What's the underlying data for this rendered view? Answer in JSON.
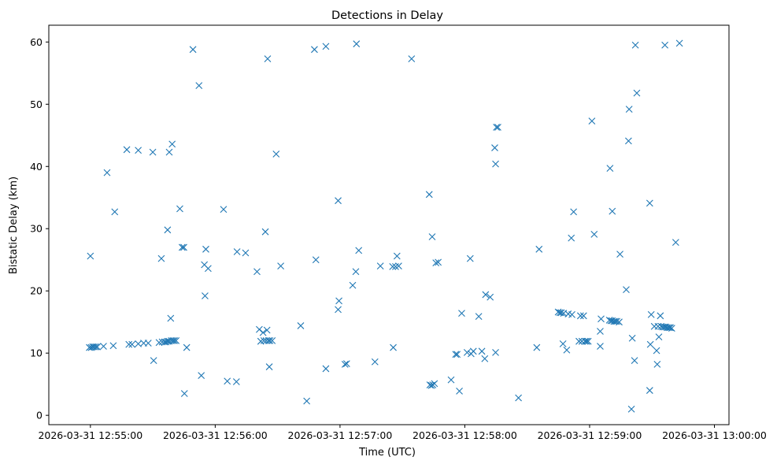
{
  "chart_data": {
    "type": "scatter",
    "title": "Detections in Delay",
    "xlabel": "Time (UTC)",
    "ylabel": "Bistatic Delay (km)",
    "x_unit": "time",
    "xlim": [
      "2026-03-31 12:54:40",
      "2026-03-31 13:00:07"
    ],
    "ylim": [
      -1.5,
      62.7
    ],
    "xticks": [
      {
        "label": "2026-03-31 12:55:00",
        "value": "2026-03-31 12:55:00"
      },
      {
        "label": "2026-03-31 12:56:00",
        "value": "2026-03-31 12:56:00"
      },
      {
        "label": "2026-03-31 12:57:00",
        "value": "2026-03-31 12:57:00"
      },
      {
        "label": "2026-03-31 12:58:00",
        "value": "2026-03-31 12:58:00"
      },
      {
        "label": "2026-03-31 12:59:00",
        "value": "2026-03-31 12:59:00"
      },
      {
        "label": "2026-03-31 13:00:00",
        "value": "2026-03-31 13:00:00"
      }
    ],
    "yticks": [
      0,
      10,
      20,
      30,
      40,
      50,
      60
    ],
    "grid": false,
    "marker": "x",
    "color": "#1f77b4",
    "points": [
      {
        "t": "2026-03-31 12:55:00.0",
        "y": 25.6
      },
      {
        "t": "2026-03-31 12:54:59.5",
        "y": 10.9
      },
      {
        "t": "2026-03-31 12:55:00.4",
        "y": 10.9
      },
      {
        "t": "2026-03-31 12:55:01.1",
        "y": 11.0
      },
      {
        "t": "2026-03-31 12:55:01.8",
        "y": 11.0
      },
      {
        "t": "2026-03-31 12:55:02.6",
        "y": 11.0
      },
      {
        "t": "2026-03-31 12:55:03.3",
        "y": 11.0
      },
      {
        "t": "2026-03-31 12:55:06.3",
        "y": 11.1
      },
      {
        "t": "2026-03-31 12:55:11.0",
        "y": 11.2
      },
      {
        "t": "2026-03-31 12:55:08.0",
        "y": 39.0
      },
      {
        "t": "2026-03-31 12:55:11.7",
        "y": 32.7
      },
      {
        "t": "2026-03-31 12:55:17.5",
        "y": 42.7
      },
      {
        "t": "2026-03-31 12:55:23.0",
        "y": 42.6
      },
      {
        "t": "2026-03-31 12:55:30.0",
        "y": 42.3
      },
      {
        "t": "2026-03-31 12:55:37.9",
        "y": 42.3
      },
      {
        "t": "2026-03-31 12:55:39.3",
        "y": 43.6
      },
      {
        "t": "2026-03-31 12:55:18.5",
        "y": 11.4
      },
      {
        "t": "2026-03-31 12:55:20.0",
        "y": 11.4
      },
      {
        "t": "2026-03-31 12:55:23.0",
        "y": 11.5
      },
      {
        "t": "2026-03-31 12:55:25.6",
        "y": 11.6
      },
      {
        "t": "2026-03-31 12:55:27.8",
        "y": 11.6
      },
      {
        "t": "2026-03-31 12:55:33.0",
        "y": 11.7
      },
      {
        "t": "2026-03-31 12:55:34.5",
        "y": 11.8
      },
      {
        "t": "2026-03-31 12:55:35.6",
        "y": 11.8
      },
      {
        "t": "2026-03-31 12:55:36.3",
        "y": 11.8
      },
      {
        "t": "2026-03-31 12:55:37.1",
        "y": 11.9
      },
      {
        "t": "2026-03-31 12:55:37.8",
        "y": 11.9
      },
      {
        "t": "2026-03-31 12:55:38.9",
        "y": 12.0
      },
      {
        "t": "2026-03-31 12:55:39.7",
        "y": 12.0
      },
      {
        "t": "2026-03-31 12:55:40.4",
        "y": 12.0
      },
      {
        "t": "2026-03-31 12:55:41.2",
        "y": 12.0
      },
      {
        "t": "2026-03-31 12:55:30.4",
        "y": 8.8
      },
      {
        "t": "2026-03-31 12:55:34.1",
        "y": 25.2
      },
      {
        "t": "2026-03-31 12:55:37.1",
        "y": 29.8
      },
      {
        "t": "2026-03-31 12:55:38.6",
        "y": 15.6
      },
      {
        "t": "2026-03-31 12:55:43.0",
        "y": 33.2
      },
      {
        "t": "2026-03-31 12:55:44.1",
        "y": 27.0
      },
      {
        "t": "2026-03-31 12:55:44.9",
        "y": 27.0
      },
      {
        "t": "2026-03-31 12:55:45.2",
        "y": 3.5
      },
      {
        "t": "2026-03-31 12:55:46.3",
        "y": 10.9
      },
      {
        "t": "2026-03-31 12:55:49.3",
        "y": 58.8
      },
      {
        "t": "2026-03-31 12:55:52.2",
        "y": 53.0
      },
      {
        "t": "2026-03-31 12:55:53.3",
        "y": 6.4
      },
      {
        "t": "2026-03-31 12:55:54.8",
        "y": 24.2
      },
      {
        "t": "2026-03-31 12:55:55.1",
        "y": 19.2
      },
      {
        "t": "2026-03-31 12:55:55.5",
        "y": 26.7
      },
      {
        "t": "2026-03-31 12:55:56.6",
        "y": 23.6
      },
      {
        "t": "2026-03-31 12:56:04.0",
        "y": 33.1
      },
      {
        "t": "2026-03-31 12:56:05.8",
        "y": 5.5
      },
      {
        "t": "2026-03-31 12:56:10.2",
        "y": 5.4
      },
      {
        "t": "2026-03-31 12:56:10.5",
        "y": 26.3
      },
      {
        "t": "2026-03-31 12:56:14.6",
        "y": 26.1
      },
      {
        "t": "2026-03-31 12:56:20.1",
        "y": 23.1
      },
      {
        "t": "2026-03-31 12:56:21.2",
        "y": 13.8
      },
      {
        "t": "2026-03-31 12:56:21.9",
        "y": 11.9
      },
      {
        "t": "2026-03-31 12:56:23.0",
        "y": 13.3
      },
      {
        "t": "2026-03-31 12:56:23.4",
        "y": 12.0
      },
      {
        "t": "2026-03-31 12:56:24.1",
        "y": 29.5
      },
      {
        "t": "2026-03-31 12:56:24.5",
        "y": 12.0
      },
      {
        "t": "2026-03-31 12:56:24.9",
        "y": 13.7
      },
      {
        "t": "2026-03-31 12:56:25.2",
        "y": 57.3
      },
      {
        "t": "2026-03-31 12:56:25.6",
        "y": 12.0
      },
      {
        "t": "2026-03-31 12:56:26.0",
        "y": 7.8
      },
      {
        "t": "2026-03-31 12:56:26.3",
        "y": 12.0
      },
      {
        "t": "2026-03-31 12:56:27.4",
        "y": 12.0
      },
      {
        "t": "2026-03-31 12:56:29.3",
        "y": 42.0
      },
      {
        "t": "2026-03-31 12:56:31.5",
        "y": 24.0
      },
      {
        "t": "2026-03-31 12:56:41.1",
        "y": 14.4
      },
      {
        "t": "2026-03-31 12:56:44.0",
        "y": 2.3
      },
      {
        "t": "2026-03-31 12:56:47.7",
        "y": 58.8
      },
      {
        "t": "2026-03-31 12:56:48.4",
        "y": 25.0
      },
      {
        "t": "2026-03-31 12:56:53.2",
        "y": 59.3
      },
      {
        "t": "2026-03-31 12:56:53.2",
        "y": 7.5
      },
      {
        "t": "2026-03-31 12:56:59.1",
        "y": 17.0
      },
      {
        "t": "2026-03-31 12:56:59.1",
        "y": 34.5
      },
      {
        "t": "2026-03-31 12:56:59.5",
        "y": 18.4
      },
      {
        "t": "2026-03-31 12:57:02.4",
        "y": 8.2
      },
      {
        "t": "2026-03-31 12:57:03.2",
        "y": 8.3
      },
      {
        "t": "2026-03-31 12:57:06.1",
        "y": 20.9
      },
      {
        "t": "2026-03-31 12:57:07.6",
        "y": 23.1
      },
      {
        "t": "2026-03-31 12:57:07.9",
        "y": 59.7
      },
      {
        "t": "2026-03-31 12:57:09.0",
        "y": 26.5
      },
      {
        "t": "2026-03-31 12:57:16.8",
        "y": 8.6
      },
      {
        "t": "2026-03-31 12:57:19.4",
        "y": 24.0
      },
      {
        "t": "2026-03-31 12:57:25.3",
        "y": 23.9
      },
      {
        "t": "2026-03-31 12:57:25.6",
        "y": 10.9
      },
      {
        "t": "2026-03-31 12:57:26.7",
        "y": 23.9
      },
      {
        "t": "2026-03-31 12:57:27.4",
        "y": 25.6
      },
      {
        "t": "2026-03-31 12:57:28.2",
        "y": 24.0
      },
      {
        "t": "2026-03-31 12:57:34.4",
        "y": 57.3
      },
      {
        "t": "2026-03-31 12:57:42.9",
        "y": 35.5
      },
      {
        "t": "2026-03-31 12:57:43.2",
        "y": 4.9
      },
      {
        "t": "2026-03-31 12:57:43.9",
        "y": 4.8
      },
      {
        "t": "2026-03-31 12:57:44.3",
        "y": 28.7
      },
      {
        "t": "2026-03-31 12:57:44.6",
        "y": 4.9
      },
      {
        "t": "2026-03-31 12:57:45.4",
        "y": 5.1
      },
      {
        "t": "2026-03-31 12:57:46.1",
        "y": 24.5
      },
      {
        "t": "2026-03-31 12:57:47.2",
        "y": 24.6
      },
      {
        "t": "2026-03-31 12:57:53.4",
        "y": 5.7
      },
      {
        "t": "2026-03-31 12:57:55.6",
        "y": 9.8
      },
      {
        "t": "2026-03-31 12:57:56.3",
        "y": 9.8
      },
      {
        "t": "2026-03-31 12:57:57.4",
        "y": 3.9
      },
      {
        "t": "2026-03-31 12:57:58.5",
        "y": 16.4
      },
      {
        "t": "2026-03-31 12:58:01.1",
        "y": 10.1
      },
      {
        "t": "2026-03-31 12:58:02.6",
        "y": 25.2
      },
      {
        "t": "2026-03-31 12:58:03.0",
        "y": 9.9
      },
      {
        "t": "2026-03-31 12:58:04.1",
        "y": 10.3
      },
      {
        "t": "2026-03-31 12:58:06.7",
        "y": 15.9
      },
      {
        "t": "2026-03-31 12:58:08.2",
        "y": 10.3
      },
      {
        "t": "2026-03-31 12:58:09.6",
        "y": 9.1
      },
      {
        "t": "2026-03-31 12:58:10.0",
        "y": 19.4
      },
      {
        "t": "2026-03-31 12:58:12.2",
        "y": 19.0
      },
      {
        "t": "2026-03-31 12:58:14.4",
        "y": 43.0
      },
      {
        "t": "2026-03-31 12:58:14.8",
        "y": 40.4
      },
      {
        "t": "2026-03-31 12:58:14.8",
        "y": 10.1
      },
      {
        "t": "2026-03-31 12:58:15.2",
        "y": 46.3
      },
      {
        "t": "2026-03-31 12:58:15.9",
        "y": 46.3
      },
      {
        "t": "2026-03-31 12:58:25.8",
        "y": 2.8
      },
      {
        "t": "2026-03-31 12:58:34.6",
        "y": 10.9
      },
      {
        "t": "2026-03-31 12:58:35.7",
        "y": 26.7
      },
      {
        "t": "2026-03-31 12:58:44.9",
        "y": 16.6
      },
      {
        "t": "2026-03-31 12:58:45.7",
        "y": 16.5
      },
      {
        "t": "2026-03-31 12:58:46.4",
        "y": 16.5
      },
      {
        "t": "2026-03-31 12:58:47.5",
        "y": 16.4
      },
      {
        "t": "2026-03-31 12:58:49.7",
        "y": 16.3
      },
      {
        "t": "2026-03-31 12:58:51.5",
        "y": 16.2
      },
      {
        "t": "2026-03-31 12:58:47.2",
        "y": 11.5
      },
      {
        "t": "2026-03-31 12:58:49.0",
        "y": 10.5
      },
      {
        "t": "2026-03-31 12:58:51.2",
        "y": 28.5
      },
      {
        "t": "2026-03-31 12:58:52.3",
        "y": 32.7
      },
      {
        "t": "2026-03-31 12:58:54.9",
        "y": 11.9
      },
      {
        "t": "2026-03-31 12:58:55.6",
        "y": 16.0
      },
      {
        "t": "2026-03-31 12:58:56.3",
        "y": 11.9
      },
      {
        "t": "2026-03-31 12:58:57.1",
        "y": 16.0
      },
      {
        "t": "2026-03-31 12:58:57.8",
        "y": 11.9
      },
      {
        "t": "2026-03-31 12:58:58.5",
        "y": 11.9
      },
      {
        "t": "2026-03-31 12:58:59.3",
        "y": 11.9
      },
      {
        "t": "2026-03-31 12:59:01.1",
        "y": 47.3
      },
      {
        "t": "2026-03-31 12:59:02.2",
        "y": 29.1
      },
      {
        "t": "2026-03-31 12:59:05.1",
        "y": 11.1
      },
      {
        "t": "2026-03-31 12:59:05.1",
        "y": 13.5
      },
      {
        "t": "2026-03-31 12:59:05.5",
        "y": 15.5
      },
      {
        "t": "2026-03-31 12:59:09.5",
        "y": 15.3
      },
      {
        "t": "2026-03-31 12:59:10.2",
        "y": 15.2
      },
      {
        "t": "2026-03-31 12:59:10.9",
        "y": 15.2
      },
      {
        "t": "2026-03-31 12:59:11.7",
        "y": 15.1
      },
      {
        "t": "2026-03-31 12:59:12.4",
        "y": 15.1
      },
      {
        "t": "2026-03-31 12:59:13.1",
        "y": 15.1
      },
      {
        "t": "2026-03-31 12:59:14.2",
        "y": 15.0
      },
      {
        "t": "2026-03-31 12:59:10.9",
        "y": 32.8
      },
      {
        "t": "2026-03-31 12:59:09.8",
        "y": 39.7
      },
      {
        "t": "2026-03-31 12:59:14.6",
        "y": 25.9
      },
      {
        "t": "2026-03-31 12:59:17.6",
        "y": 20.2
      },
      {
        "t": "2026-03-31 12:59:18.7",
        "y": 44.1
      },
      {
        "t": "2026-03-31 12:59:19.0",
        "y": 49.2
      },
      {
        "t": "2026-03-31 12:59:20.1",
        "y": 1.0
      },
      {
        "t": "2026-03-31 12:59:20.5",
        "y": 12.4
      },
      {
        "t": "2026-03-31 12:59:21.6",
        "y": 8.8
      },
      {
        "t": "2026-03-31 12:59:22.0",
        "y": 59.5
      },
      {
        "t": "2026-03-31 12:59:22.7",
        "y": 51.8
      },
      {
        "t": "2026-03-31 12:59:28.9",
        "y": 34.1
      },
      {
        "t": "2026-03-31 12:59:28.9",
        "y": 4.0
      },
      {
        "t": "2026-03-31 12:59:29.2",
        "y": 11.4
      },
      {
        "t": "2026-03-31 12:59:29.6",
        "y": 16.2
      },
      {
        "t": "2026-03-31 12:59:31.1",
        "y": 14.3
      },
      {
        "t": "2026-03-31 12:59:32.2",
        "y": 10.4
      },
      {
        "t": "2026-03-31 12:59:32.5",
        "y": 8.2
      },
      {
        "t": "2026-03-31 12:59:32.9",
        "y": 14.3
      },
      {
        "t": "2026-03-31 12:59:33.3",
        "y": 12.6
      },
      {
        "t": "2026-03-31 12:59:34.0",
        "y": 16.0
      },
      {
        "t": "2026-03-31 12:59:34.4",
        "y": 14.3
      },
      {
        "t": "2026-03-31 12:59:35.1",
        "y": 14.2
      },
      {
        "t": "2026-03-31 12:59:35.9",
        "y": 14.2
      },
      {
        "t": "2026-03-31 12:59:36.2",
        "y": 59.5
      },
      {
        "t": "2026-03-31 12:59:36.6",
        "y": 14.2
      },
      {
        "t": "2026-03-31 12:59:37.3",
        "y": 14.1
      },
      {
        "t": "2026-03-31 12:59:38.1",
        "y": 14.1
      },
      {
        "t": "2026-03-31 12:59:38.8",
        "y": 14.1
      },
      {
        "t": "2026-03-31 12:59:39.5",
        "y": 14.0
      },
      {
        "t": "2026-03-31 12:59:41.4",
        "y": 27.8
      },
      {
        "t": "2026-03-31 12:59:43.2",
        "y": 59.8
      }
    ]
  }
}
